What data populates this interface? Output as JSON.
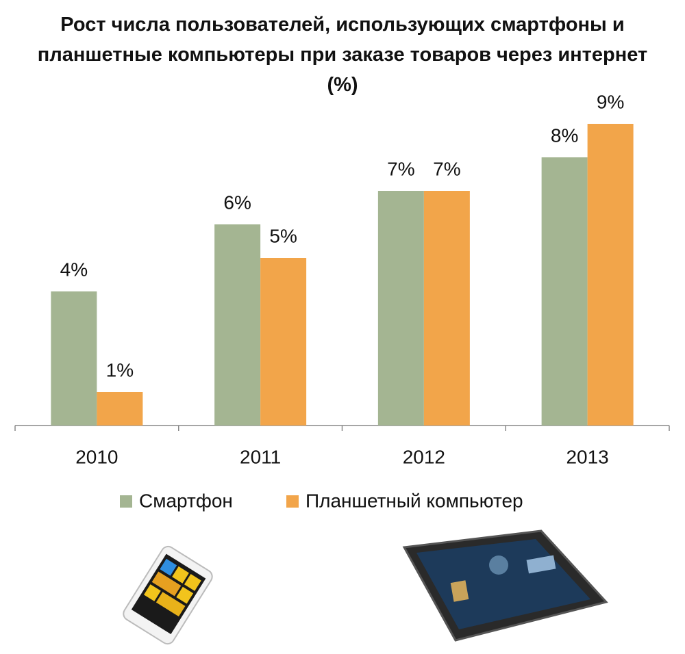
{
  "chart_data": {
    "type": "bar",
    "title": "Рост числа пользователей, использующих смартфоны и планшетные компьютеры при заказе товаров через интернет (%)",
    "categories": [
      "2010",
      "2011",
      "2012",
      "2013"
    ],
    "series": [
      {
        "name": "Смартфон",
        "color": "#a4b592",
        "values": [
          4,
          6,
          7,
          8
        ],
        "value_labels": [
          "4%",
          "6%",
          "7%",
          "8%"
        ]
      },
      {
        "name": "Планшетный компьютер",
        "color": "#f2a54a",
        "values": [
          1,
          5,
          7,
          9
        ],
        "value_labels": [
          "1%",
          "5%",
          "7%",
          "9%"
        ]
      }
    ],
    "ylim": [
      0,
      10
    ]
  }
}
